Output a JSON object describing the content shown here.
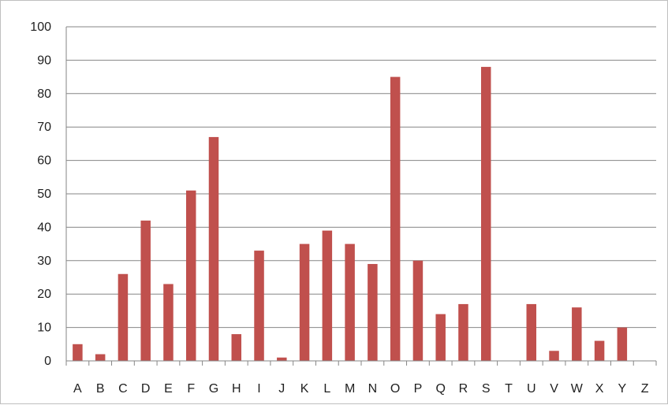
{
  "chart_data": {
    "type": "bar",
    "categories": [
      "A",
      "B",
      "C",
      "D",
      "E",
      "F",
      "G",
      "H",
      "I",
      "J",
      "K",
      "L",
      "M",
      "N",
      "O",
      "P",
      "Q",
      "R",
      "S",
      "T",
      "U",
      "V",
      "W",
      "X",
      "Y",
      "Z"
    ],
    "values": [
      5,
      2,
      26,
      42,
      23,
      51,
      67,
      8,
      33,
      1,
      35,
      39,
      35,
      29,
      85,
      30,
      14,
      17,
      88,
      0,
      17,
      3,
      16,
      6,
      10,
      0
    ],
    "title": "",
    "xlabel": "",
    "ylabel": "",
    "ylim": [
      0,
      100
    ],
    "yticks": [
      "0",
      "10",
      "20",
      "30",
      "40",
      "50",
      "60",
      "70",
      "80",
      "90",
      "100"
    ],
    "grid": true,
    "legend": "none",
    "bar_color": "#c0504d",
    "grid_color": "#868686"
  }
}
